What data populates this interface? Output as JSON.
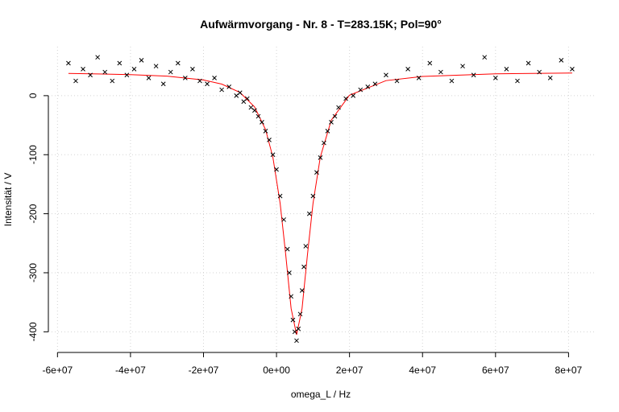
{
  "chart_data": {
    "type": "scatter",
    "title": "Aufwärmvorgang - Nr. 8 - T=283.15K; Pol=90°",
    "xlabel": "omega_L / Hz",
    "ylabel": "Intensität / V",
    "xlim": [
      -62500000,
      87200000
    ],
    "ylim": [
      -435,
      83
    ],
    "xticks": [
      {
        "value": -60000000,
        "label": "-6e+07"
      },
      {
        "value": -40000000,
        "label": "-4e+07"
      },
      {
        "value": -20000000,
        "label": "-2e+07"
      },
      {
        "value": 0,
        "label": "0e+00"
      },
      {
        "value": 20000000,
        "label": "2e+07"
      },
      {
        "value": 40000000,
        "label": "4e+07"
      },
      {
        "value": 60000000,
        "label": "6e+07"
      },
      {
        "value": 80000000,
        "label": "8e+07"
      }
    ],
    "yticks": [
      -400,
      -300,
      -200,
      -100,
      0
    ],
    "grid": true,
    "points": {
      "color": "#000000",
      "x": [
        -57000000,
        -55000000,
        -53000000,
        -51000000,
        -49000000,
        -47000000,
        -45000000,
        -43000000,
        -41000000,
        -39000000,
        -37000000,
        -35000000,
        -33000000,
        -31000000,
        -29000000,
        -27000000,
        -25000000,
        -23000000,
        -21000000,
        -19000000,
        -17000000,
        -15000000,
        -13000000,
        -11000000,
        -10000000,
        -9000000,
        -8000000,
        -7000000,
        -6000000,
        -5000000,
        -4000000,
        -3000000,
        -2000000,
        -1000000,
        0,
        1000000,
        2000000,
        3000000,
        3500000,
        4000000,
        4500000,
        5000000,
        5500000,
        6000000,
        6500000,
        7000000,
        7500000,
        8000000,
        9000000,
        10000000,
        11000000,
        12000000,
        13000000,
        14000000,
        15000000,
        16000000,
        17000000,
        19000000,
        21000000,
        23000000,
        25000000,
        27000000,
        30000000,
        33000000,
        36000000,
        39000000,
        42000000,
        45000000,
        48000000,
        51000000,
        54000000,
        57000000,
        60000000,
        63000000,
        66000000,
        69000000,
        72000000,
        75000000,
        78000000,
        81000000
      ],
      "values": [
        55,
        25,
        45,
        35,
        65,
        40,
        25,
        55,
        35,
        45,
        60,
        30,
        50,
        20,
        40,
        55,
        30,
        45,
        25,
        20,
        30,
        10,
        15,
        0,
        5,
        -10,
        -5,
        -20,
        -25,
        -35,
        -45,
        -60,
        -75,
        -100,
        -125,
        -170,
        -210,
        -260,
        -300,
        -340,
        -380,
        -400,
        -415,
        -395,
        -370,
        -330,
        -290,
        -255,
        -200,
        -170,
        -130,
        -105,
        -80,
        -60,
        -45,
        -35,
        -20,
        -5,
        0,
        10,
        15,
        20,
        35,
        25,
        45,
        30,
        55,
        40,
        25,
        50,
        35,
        65,
        30,
        45,
        25,
        55,
        40,
        30,
        60,
        45
      ]
    },
    "fit": {
      "color": "#ff0000",
      "x": [
        -57000000,
        -40000000,
        -30000000,
        -20000000,
        -15000000,
        -10000000,
        -6000000,
        -3000000,
        -1000000,
        1000000,
        2500000,
        4000000,
        5500000,
        7000000,
        8500000,
        10000000,
        12000000,
        15000000,
        20000000,
        30000000,
        40000000,
        60000000,
        81000000
      ],
      "values": [
        37.7,
        35.7,
        33.0,
        26.6,
        19.6,
        5.4,
        -19.1,
        -57.4,
        -104,
        -182.5,
        -268,
        -360.5,
        -405,
        -360.5,
        -268,
        -182.5,
        -104,
        -41.5,
        0.9,
        25.5,
        32.6,
        37,
        38.4
      ]
    }
  }
}
